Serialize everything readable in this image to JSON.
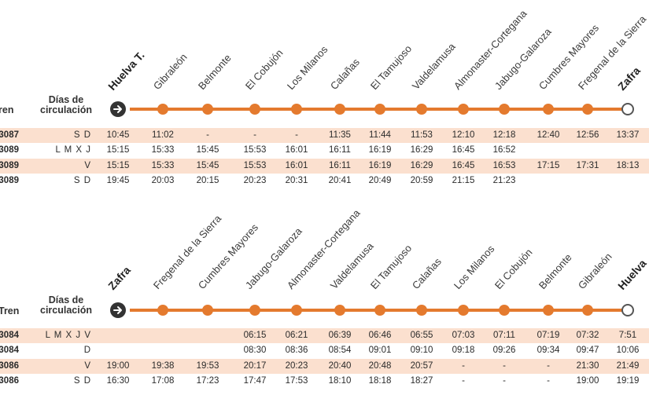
{
  "top": {
    "tren_label": "ren",
    "dias_label_line1": "Días de",
    "dias_label_line2": "circulación",
    "stations": [
      "Huelva T.",
      "Gibraleón",
      "Belmonte",
      "El Cobujón",
      "Los Milanos",
      "Calañas",
      "El Tamujoso",
      "Valdelamusa",
      "Almonaster-Cortegana",
      "Jabugo-Galaroza",
      "Cumbres Mayores",
      "Fregenal de la Sierra",
      "Zafra"
    ],
    "rows": [
      {
        "train": "3087",
        "days": "S D",
        "shaded": true,
        "times": [
          "10:45",
          "11:02",
          "-",
          "-",
          "-",
          "11:35",
          "11:44",
          "11:53",
          "12:10",
          "12:18",
          "12:40",
          "12:56",
          "13:37"
        ]
      },
      {
        "train": "3089",
        "days": "L M X J",
        "shaded": false,
        "times": [
          "15:15",
          "15:33",
          "15:45",
          "15:53",
          "16:01",
          "16:11",
          "16:19",
          "16:29",
          "16:45",
          "16:52",
          "",
          "",
          ""
        ]
      },
      {
        "train": "3089",
        "days": "V",
        "shaded": true,
        "times": [
          "15:15",
          "15:33",
          "15:45",
          "15:53",
          "16:01",
          "16:11",
          "16:19",
          "16:29",
          "16:45",
          "16:53",
          "17:15",
          "17:31",
          "18:13"
        ]
      },
      {
        "train": "3089",
        "days": "S D",
        "shaded": false,
        "times": [
          "19:45",
          "20:03",
          "20:15",
          "20:23",
          "20:31",
          "20:41",
          "20:49",
          "20:59",
          "21:15",
          "21:23",
          "",
          "",
          ""
        ]
      }
    ]
  },
  "bottom": {
    "tren_label": "Tren",
    "dias_label_line1": "Días de",
    "dias_label_line2": "circulación",
    "stations": [
      "Zafra",
      "Fregenal de la Sierra",
      "Cumbres Mayores",
      "Jabugo-Galaroza",
      "Almonaster-Cortegana",
      "Valdelamusa",
      "El Tamujoso",
      "Calañas",
      "Los Milanos",
      "El Cobujón",
      "Belmonte",
      "Gibraleón",
      "Huelva"
    ],
    "rows": [
      {
        "train": "3084",
        "days": "L M X J V",
        "shaded": true,
        "times": [
          "",
          "",
          "",
          "06:15",
          "06:21",
          "06:39",
          "06:46",
          "06:55",
          "07:03",
          "07:11",
          "07:19",
          "07:32",
          "7:51"
        ]
      },
      {
        "train": "3084",
        "days": "D",
        "shaded": false,
        "times": [
          "",
          "",
          "",
          "08:30",
          "08:36",
          "08:54",
          "09:01",
          "09:10",
          "09:18",
          "09:26",
          "09:34",
          "09:47",
          "10:06"
        ]
      },
      {
        "train": "3086",
        "days": "V",
        "shaded": true,
        "times": [
          "19:00",
          "19:38",
          "19:53",
          "20:17",
          "20:23",
          "20:40",
          "20:48",
          "20:57",
          "-",
          "-",
          "-",
          "21:30",
          "21:49"
        ]
      },
      {
        "train": "3086",
        "days": "S D",
        "shaded": false,
        "times": [
          "16:30",
          "17:08",
          "17:23",
          "17:47",
          "17:53",
          "18:10",
          "18:18",
          "18:27",
          "-",
          "-",
          "-",
          "19:00",
          "19:19"
        ]
      }
    ]
  },
  "colors": {
    "accent": "#e47a2e",
    "row_shade": "#fbe0cf"
  }
}
